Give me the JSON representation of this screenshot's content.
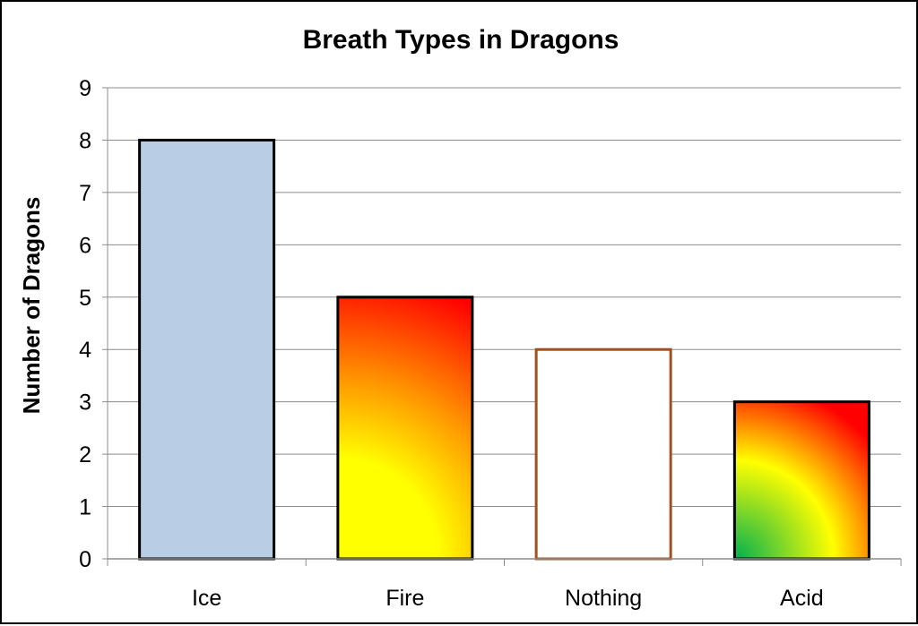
{
  "chart_data": {
    "type": "bar",
    "title": "Breath Types in Dragons",
    "xlabel": "",
    "ylabel": "Number of Dragons",
    "categories": [
      "Ice",
      "Fire",
      "Nothing",
      "Acid"
    ],
    "values": [
      8,
      5,
      4,
      3
    ],
    "ylim": [
      0,
      9
    ],
    "yticks": [
      "0",
      "1",
      "2",
      "3",
      "4",
      "5",
      "6",
      "7",
      "8",
      "9"
    ],
    "grid": true,
    "legend": "none",
    "bar_styles": [
      {
        "fill": "solid",
        "color": "#b9cde5",
        "border": "#000000"
      },
      {
        "fill": "gradient-fire",
        "stops": [
          "#ffff00",
          "#ff9900",
          "#ff0000"
        ],
        "border": "#000000"
      },
      {
        "fill": "solid",
        "color": "#ffffff",
        "border": "#a0501e"
      },
      {
        "fill": "gradient-acid",
        "stops": [
          "#00b050",
          "#ffff00",
          "#ff0000"
        ],
        "border": "#000000"
      }
    ]
  }
}
